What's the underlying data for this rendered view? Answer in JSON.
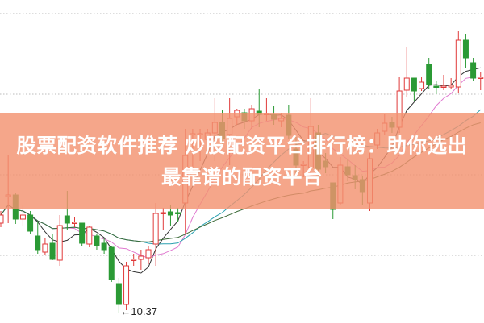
{
  "banner": {
    "title": "股票配资软件推荐 炒股配资平台排行榜：助你选出最靠谱的配资平台",
    "color": "#f39270"
  },
  "chart_data": {
    "type": "candlestick",
    "title": "",
    "xlabel": "",
    "ylabel": "",
    "grid": true,
    "gridlines": [
      14.08,
      13.08,
      12.08,
      11.08
    ],
    "ylim": [
      10.24,
      14.25
    ],
    "annotation": {
      "label": "10.37",
      "value": 10.37,
      "candle_index": 16
    },
    "colors": {
      "up": "#e03a3a",
      "down": "#2b9a35",
      "grid": "#bbbbbb",
      "ma": [
        "#333333",
        "#e07ad0",
        "#2aa0b0",
        "#3d6b3a"
      ]
    },
    "candles": [
      [
        11.48,
        11.58,
        11.63,
        11.43
      ],
      [
        11.81,
        11.83,
        12.32,
        11.48
      ],
      [
        11.83,
        11.53,
        11.85,
        11.47
      ],
      [
        11.53,
        11.58,
        11.7,
        11.45
      ],
      [
        11.58,
        11.38,
        11.63,
        11.35
      ],
      [
        11.32,
        11.15,
        11.5,
        11.1
      ],
      [
        11.12,
        11.22,
        11.29,
        11.09
      ],
      [
        11.23,
        11.03,
        11.35,
        11.02
      ],
      [
        11.02,
        11.45,
        11.58,
        10.95
      ],
      [
        11.57,
        11.48,
        11.88,
        11.4
      ],
      [
        11.48,
        11.49,
        11.55,
        11.43
      ],
      [
        11.48,
        11.23,
        11.48,
        11.2
      ],
      [
        11.22,
        11.43,
        11.45,
        11.18
      ],
      [
        11.32,
        11.2,
        11.35,
        11.15
      ],
      [
        11.23,
        11.15,
        11.29,
        11.1
      ],
      [
        11.18,
        10.78,
        11.2,
        10.75
      ],
      [
        10.73,
        10.47,
        10.8,
        10.37
      ],
      [
        10.47,
        10.95,
        11.0,
        10.4
      ],
      [
        11.02,
        11.03,
        11.1,
        10.95
      ],
      [
        11.03,
        11.07,
        11.15,
        10.9
      ],
      [
        11.05,
        11.15,
        11.2,
        10.97
      ],
      [
        11.22,
        11.6,
        11.73,
        10.95
      ],
      [
        11.6,
        11.61,
        11.67,
        11.4
      ],
      [
        11.62,
        11.58,
        11.7,
        11.45
      ],
      [
        11.61,
        11.6,
        11.67,
        11.5
      ],
      [
        11.73,
        12.32,
        12.65,
        11.35
      ],
      [
        12.58,
        12.59,
        12.65,
        12.1
      ],
      [
        12.58,
        12.59,
        12.65,
        12.25
      ],
      [
        12.52,
        12.6,
        12.65,
        12.35
      ],
      [
        12.6,
        12.73,
        13.03,
        12.25
      ],
      [
        12.73,
        12.53,
        12.88,
        12.45
      ],
      [
        12.58,
        12.78,
        13.03,
        12.2
      ],
      [
        12.8,
        12.88,
        12.9,
        12.7
      ],
      [
        12.85,
        12.75,
        12.9,
        12.65
      ],
      [
        12.75,
        12.9,
        12.95,
        12.65
      ],
      [
        12.87,
        12.83,
        13.15,
        12.67
      ],
      [
        12.83,
        12.84,
        13.03,
        12.75
      ],
      [
        12.83,
        12.77,
        12.93,
        12.7
      ],
      [
        12.75,
        12.78,
        12.85,
        12.67
      ],
      [
        12.82,
        12.57,
        12.95,
        12.53
      ],
      [
        12.4,
        12.2,
        12.55,
        12.07
      ],
      [
        12.2,
        12.21,
        12.25,
        12.05
      ],
      [
        12.17,
        12.68,
        13.03,
        12.0
      ],
      [
        12.6,
        12.15,
        12.7,
        12.0
      ],
      [
        12.25,
        12.18,
        12.35,
        12.1
      ],
      [
        11.98,
        11.65,
        11.98,
        11.53
      ],
      [
        11.73,
        12.2,
        12.3,
        11.7
      ],
      [
        12.18,
        12.08,
        12.27,
        12.0
      ],
      [
        12.07,
        12.02,
        12.2,
        11.9
      ],
      [
        12.02,
        11.87,
        12.07,
        11.7
      ],
      [
        11.73,
        12.28,
        12.35,
        11.63
      ],
      [
        12.45,
        12.6,
        12.65,
        12.4
      ],
      [
        12.62,
        12.72,
        12.83,
        12.57
      ],
      [
        12.73,
        12.67,
        12.8,
        12.6
      ],
      [
        12.67,
        13.12,
        13.3,
        12.6
      ],
      [
        13.13,
        13.28,
        13.67,
        13.05
      ],
      [
        13.28,
        13.12,
        13.28,
        13.0
      ],
      [
        13.15,
        13.23,
        13.3,
        13.12
      ],
      [
        13.45,
        13.2,
        13.53,
        13.15
      ],
      [
        13.18,
        13.17,
        13.25,
        13.08
      ],
      [
        13.17,
        13.18,
        13.32,
        13.13
      ],
      [
        13.17,
        13.19,
        13.28,
        13.15
      ],
      [
        13.17,
        13.75,
        13.87,
        13.1
      ],
      [
        13.75,
        13.53,
        13.83,
        13.4
      ],
      [
        13.47,
        13.28,
        13.53,
        13.25
      ],
      [
        13.28,
        13.29,
        13.35,
        13.13
      ]
    ]
  }
}
